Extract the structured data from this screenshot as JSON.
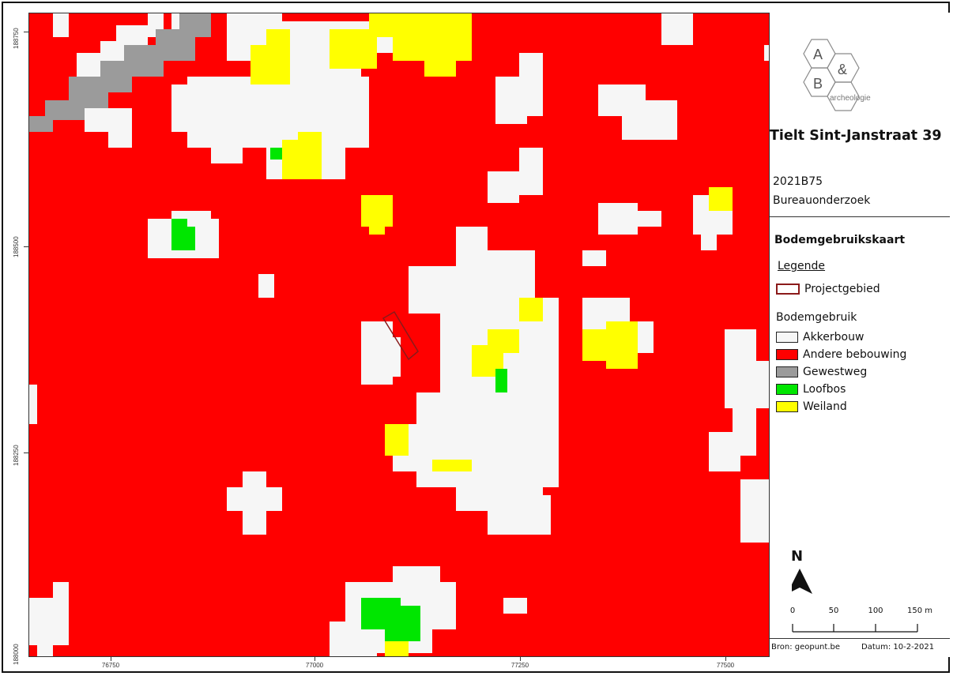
{
  "map": {
    "x_ticks": [
      "76750",
      "77000",
      "77250",
      "77500"
    ],
    "y_ticks": [
      "188750",
      "188500",
      "188250",
      "188000"
    ],
    "colors": {
      "akkerbouw": "#f6f6f6",
      "andere_bebouwing": "#ff0000",
      "gewestweg": "#9b9b9b",
      "loofbos": "#00e600",
      "weiland": "#ffff00",
      "projectgebied": "#8b1a1a"
    }
  },
  "logo": {
    "letter_a": "A",
    "ampersand": "&",
    "letter_b": "B",
    "wordmark": "archeologie"
  },
  "panel": {
    "title": "Tielt Sint-Janstraat 39",
    "code": "2021B75",
    "subtitle": "Bureauonderzoek",
    "map_title": "Bodemgebruikskaart",
    "legend_heading": "Legende",
    "project_label": "Projectgebied",
    "group_label": "Bodemgebruik",
    "legend_items": [
      {
        "label": "Akkerbouw",
        "color": "#f6f6f6"
      },
      {
        "label": "Andere bebouwing",
        "color": "#ff0000"
      },
      {
        "label": "Gewestweg",
        "color": "#9b9b9b"
      },
      {
        "label": "Loofbos",
        "color": "#00e600"
      },
      {
        "label": "Weiland",
        "color": "#ffff00"
      }
    ],
    "north": "N",
    "scale_labels": [
      "0",
      "50",
      "100",
      "150 m"
    ],
    "source": "Bron: geopunt.be",
    "date": "Datum: 10-2-2021"
  }
}
